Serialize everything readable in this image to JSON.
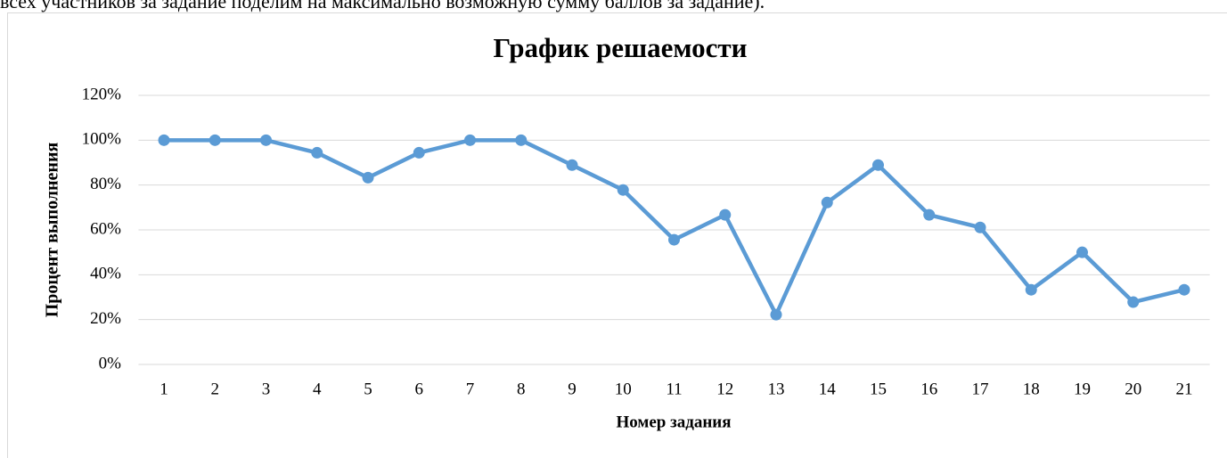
{
  "document_text": "всех участников за задание поделим на максимально возможную сумму баллов за задание).",
  "chart_data": {
    "type": "line",
    "title": "График решаемости",
    "x_label": "Номер задания",
    "y_label": "Процент выполнения",
    "categories": [
      "1",
      "2",
      "3",
      "4",
      "5",
      "6",
      "7",
      "8",
      "9",
      "10",
      "11",
      "12",
      "13",
      "14",
      "15",
      "16",
      "17",
      "18",
      "19",
      "20",
      "21"
    ],
    "series": [
      {
        "name": "Процент выполнения",
        "color": "#5b9bd5",
        "values": [
          100,
          100,
          100,
          94.4,
          83.3,
          94.4,
          100,
          100,
          88.9,
          77.8,
          55.6,
          66.7,
          22.2,
          72.2,
          88.9,
          66.7,
          61.1,
          33.3,
          50,
          27.8,
          33.3
        ]
      }
    ],
    "ylim": [
      0,
      120
    ],
    "yticks": [
      {
        "value": 0,
        "label": "0%"
      },
      {
        "value": 20,
        "label": "20%"
      },
      {
        "value": 40,
        "label": "40%"
      },
      {
        "value": 60,
        "label": "60%"
      },
      {
        "value": 80,
        "label": "80%"
      },
      {
        "value": 100,
        "label": "100%"
      },
      {
        "value": 120,
        "label": "120%"
      }
    ],
    "grid": true
  }
}
